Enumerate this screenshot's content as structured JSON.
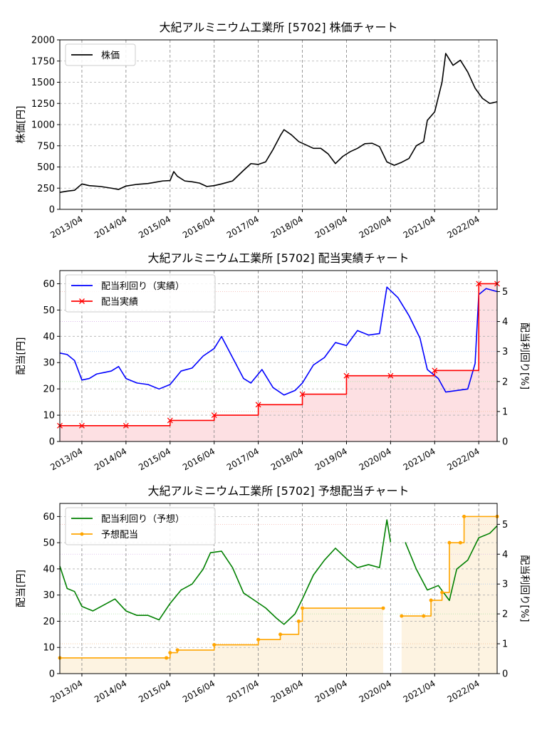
{
  "chart_data": [
    {
      "type": "line",
      "title": "大紀アルミニウム工業所 [5702]  株価チャート",
      "xlabel": "",
      "ylabel": "株価[円]",
      "x_ticks": [
        "2013/04",
        "2014/04",
        "2015/04",
        "2016/04",
        "2017/04",
        "2018/04",
        "2019/04",
        "2020/04",
        "2021/04",
        "2022/04"
      ],
      "xlim": [
        "2012/10",
        "2022/09"
      ],
      "ylim": [
        0,
        2000
      ],
      "y_ticks": [
        0,
        250,
        500,
        750,
        1000,
        1250,
        1500,
        1750,
        2000
      ],
      "grid": true,
      "legend_position": "top-left",
      "series": [
        {
          "name": "株価",
          "color": "#000000",
          "points": [
            [
              "2012/10",
              200
            ],
            [
              "2012/12",
              215
            ],
            [
              "2013/02",
              225
            ],
            [
              "2013/04",
              300
            ],
            [
              "2013/06",
              280
            ],
            [
              "2013/09",
              270
            ],
            [
              "2013/12",
              250
            ],
            [
              "2014/02",
              235
            ],
            [
              "2014/04",
              275
            ],
            [
              "2014/07",
              295
            ],
            [
              "2014/10",
              305
            ],
            [
              "2014/12",
              320
            ],
            [
              "2015/02",
              335
            ],
            [
              "2015/04",
              340
            ],
            [
              "2015/05",
              445
            ],
            [
              "2015/06",
              390
            ],
            [
              "2015/08",
              335
            ],
            [
              "2015/10",
              325
            ],
            [
              "2015/12",
              310
            ],
            [
              "2016/02",
              270
            ],
            [
              "2016/04",
              280
            ],
            [
              "2016/06",
              300
            ],
            [
              "2016/09",
              335
            ],
            [
              "2016/12",
              460
            ],
            [
              "2017/02",
              540
            ],
            [
              "2017/04",
              530
            ],
            [
              "2017/06",
              560
            ],
            [
              "2017/08",
              705
            ],
            [
              "2017/10",
              870
            ],
            [
              "2017/11",
              940
            ],
            [
              "2018/01",
              880
            ],
            [
              "2018/03",
              800
            ],
            [
              "2018/05",
              760
            ],
            [
              "2018/07",
              720
            ],
            [
              "2018/09",
              720
            ],
            [
              "2018/11",
              655
            ],
            [
              "2019/01",
              540
            ],
            [
              "2019/03",
              625
            ],
            [
              "2019/05",
              680
            ],
            [
              "2019/07",
              720
            ],
            [
              "2019/09",
              775
            ],
            [
              "2019/11",
              780
            ],
            [
              "2020/01",
              740
            ],
            [
              "2020/03",
              560
            ],
            [
              "2020/05",
              520
            ],
            [
              "2020/07",
              555
            ],
            [
              "2020/09",
              600
            ],
            [
              "2020/11",
              750
            ],
            [
              "2021/01",
              800
            ],
            [
              "2021/02",
              1050
            ],
            [
              "2021/04",
              1150
            ],
            [
              "2021/06",
              1500
            ],
            [
              "2021/07",
              1840
            ],
            [
              "2021/09",
              1700
            ],
            [
              "2021/11",
              1760
            ],
            [
              "2022/01",
              1620
            ],
            [
              "2022/03",
              1430
            ],
            [
              "2022/05",
              1310
            ],
            [
              "2022/07",
              1250
            ],
            [
              "2022/09",
              1270
            ]
          ]
        }
      ]
    },
    {
      "type": "line",
      "title": "大紀アルミニウム工業所 [5702]  配当実績チャート",
      "xlabel": "",
      "ylabel": "配当[円]",
      "ylabel_right": "配当利回り[%]",
      "x_ticks": [
        "2013/04",
        "2014/04",
        "2015/04",
        "2016/04",
        "2017/04",
        "2018/04",
        "2019/04",
        "2020/04",
        "2021/04",
        "2022/04"
      ],
      "xlim": [
        "2012/10",
        "2022/09"
      ],
      "ylim": [
        0,
        65
      ],
      "y_ticks": [
        0,
        10,
        20,
        30,
        40,
        50,
        60
      ],
      "ylim_right": [
        0,
        5.7
      ],
      "y_ticks_right": [
        0,
        1,
        2,
        3,
        4,
        5
      ],
      "grid": true,
      "legend_position": "top-left",
      "fill_color": "#fde0e3",
      "series": [
        {
          "name": "配当利回り（実績）",
          "axis": "right",
          "color": "#0000ff",
          "points": [
            [
              "2012/10",
              2.95
            ],
            [
              "2012/12",
              2.9
            ],
            [
              "2013/02",
              2.7
            ],
            [
              "2013/04",
              2.05
            ],
            [
              "2013/06",
              2.1
            ],
            [
              "2013/08",
              2.25
            ],
            [
              "2013/10",
              2.3
            ],
            [
              "2013/12",
              2.35
            ],
            [
              "2014/02",
              2.5
            ],
            [
              "2014/04",
              2.1
            ],
            [
              "2014/07",
              1.95
            ],
            [
              "2014/10",
              1.9
            ],
            [
              "2015/01",
              1.75
            ],
            [
              "2015/04",
              1.9
            ],
            [
              "2015/07",
              2.35
            ],
            [
              "2015/10",
              2.45
            ],
            [
              "2016/01",
              2.85
            ],
            [
              "2016/04",
              3.1
            ],
            [
              "2016/06",
              3.5
            ],
            [
              "2016/09",
              2.8
            ],
            [
              "2016/12",
              2.1
            ],
            [
              "2017/02",
              1.95
            ],
            [
              "2017/05",
              2.4
            ],
            [
              "2017/08",
              1.8
            ],
            [
              "2017/11",
              1.55
            ],
            [
              "2018/02",
              1.7
            ],
            [
              "2018/04",
              1.95
            ],
            [
              "2018/07",
              2.55
            ],
            [
              "2018/10",
              2.8
            ],
            [
              "2019/01",
              3.3
            ],
            [
              "2019/04",
              3.2
            ],
            [
              "2019/07",
              3.7
            ],
            [
              "2019/10",
              3.55
            ],
            [
              "2020/01",
              3.6
            ],
            [
              "2020/03",
              5.15
            ],
            [
              "2020/06",
              4.8
            ],
            [
              "2020/09",
              4.2
            ],
            [
              "2020/12",
              3.45
            ],
            [
              "2021/02",
              2.4
            ],
            [
              "2021/05",
              2.1
            ],
            [
              "2021/07",
              1.65
            ],
            [
              "2021/10",
              1.7
            ],
            [
              "2022/01",
              1.75
            ],
            [
              "2022/03",
              2.6
            ],
            [
              "2022/04",
              4.9
            ],
            [
              "2022/06",
              5.1
            ],
            [
              "2022/09",
              5.0
            ]
          ]
        },
        {
          "name": "配当実績",
          "axis": "left",
          "color": "#ff0000",
          "step": true,
          "points": [
            [
              "2012/10",
              6
            ],
            [
              "2013/04",
              6
            ],
            [
              "2014/04",
              6
            ],
            [
              "2015/04",
              8
            ],
            [
              "2016/04",
              10
            ],
            [
              "2017/04",
              14
            ],
            [
              "2018/04",
              18
            ],
            [
              "2019/04",
              25
            ],
            [
              "2020/04",
              25
            ],
            [
              "2021/04",
              27
            ],
            [
              "2022/04",
              60
            ],
            [
              "2022/09",
              60
            ]
          ]
        }
      ]
    },
    {
      "type": "line",
      "title": "大紀アルミニウム工業所 [5702]  予想配当チャート",
      "xlabel": "",
      "ylabel": "配当[円]",
      "ylabel_right": "配当利回り[%]",
      "x_ticks": [
        "2013/04",
        "2014/04",
        "2015/04",
        "2016/04",
        "2017/04",
        "2018/04",
        "2019/04",
        "2020/04",
        "2021/04",
        "2022/04"
      ],
      "xlim": [
        "2012/10",
        "2022/09"
      ],
      "ylim": [
        0,
        65
      ],
      "y_ticks": [
        0,
        10,
        20,
        30,
        40,
        50,
        60
      ],
      "ylim_right": [
        0,
        5.7
      ],
      "y_ticks_right": [
        0,
        1,
        2,
        3,
        4,
        5
      ],
      "grid": true,
      "legend_position": "top-left",
      "fill_color": "#fdf3e1",
      "series": [
        {
          "name": "配当利回り（予想）",
          "axis": "right",
          "color": "#008000",
          "points": [
            [
              "2012/10",
              3.6
            ],
            [
              "2012/12",
              2.85
            ],
            [
              "2013/02",
              2.75
            ],
            [
              "2013/04",
              2.25
            ],
            [
              "2013/07",
              2.1
            ],
            [
              "2013/10",
              2.3
            ],
            [
              "2014/01",
              2.5
            ],
            [
              "2014/04",
              2.1
            ],
            [
              "2014/07",
              1.95
            ],
            [
              "2014/10",
              1.95
            ],
            [
              "2015/01",
              1.8
            ],
            [
              "2015/04",
              2.35
            ],
            [
              "2015/07",
              2.8
            ],
            [
              "2015/10",
              3.0
            ],
            [
              "2016/01",
              3.5
            ],
            [
              "2016/03",
              4.05
            ],
            [
              "2016/06",
              4.1
            ],
            [
              "2016/09",
              3.55
            ],
            [
              "2016/12",
              2.7
            ],
            [
              "2017/03",
              2.45
            ],
            [
              "2017/06",
              2.2
            ],
            [
              "2017/09",
              1.85
            ],
            [
              "2017/11",
              1.65
            ],
            [
              "2018/02",
              2.0
            ],
            [
              "2018/04",
              2.5
            ],
            [
              "2018/07",
              3.3
            ],
            [
              "2018/10",
              3.8
            ],
            [
              "2019/01",
              4.2
            ],
            [
              "2019/04",
              3.85
            ],
            [
              "2019/07",
              3.55
            ],
            [
              "2019/10",
              3.65
            ],
            [
              "2020/01",
              3.55
            ],
            [
              "2020/03",
              5.15
            ],
            [
              "2020/04",
              4.4
            ],
            null,
            [
              "2020/08",
              4.4
            ],
            [
              "2020/11",
              3.5
            ],
            [
              "2021/02",
              2.8
            ],
            [
              "2021/05",
              2.95
            ],
            [
              "2021/08",
              2.45
            ],
            [
              "2021/10",
              3.5
            ],
            [
              "2022/01",
              3.8
            ],
            [
              "2022/04",
              4.55
            ],
            [
              "2022/07",
              4.7
            ],
            [
              "2022/09",
              4.95
            ]
          ]
        },
        {
          "name": "予想配当",
          "axis": "left",
          "color": "#ffa500",
          "step": true,
          "markers": true,
          "points": [
            [
              "2012/10",
              6
            ],
            [
              "2015/03",
              6
            ],
            [
              "2015/04",
              8
            ],
            [
              "2015/06",
              9
            ],
            [
              "2016/04",
              11
            ],
            [
              "2017/04",
              13
            ],
            [
              "2017/10",
              15
            ],
            [
              "2018/03",
              20
            ],
            [
              "2018/04",
              25
            ],
            [
              "2020/02",
              25
            ],
            null,
            [
              "2020/07",
              22
            ],
            [
              "2021/01",
              22
            ],
            [
              "2021/03",
              28
            ],
            [
              "2021/06",
              31
            ],
            [
              "2021/08",
              50
            ],
            [
              "2021/11",
              50
            ],
            [
              "2021/12",
              60
            ],
            [
              "2022/09",
              60
            ]
          ]
        }
      ]
    }
  ]
}
